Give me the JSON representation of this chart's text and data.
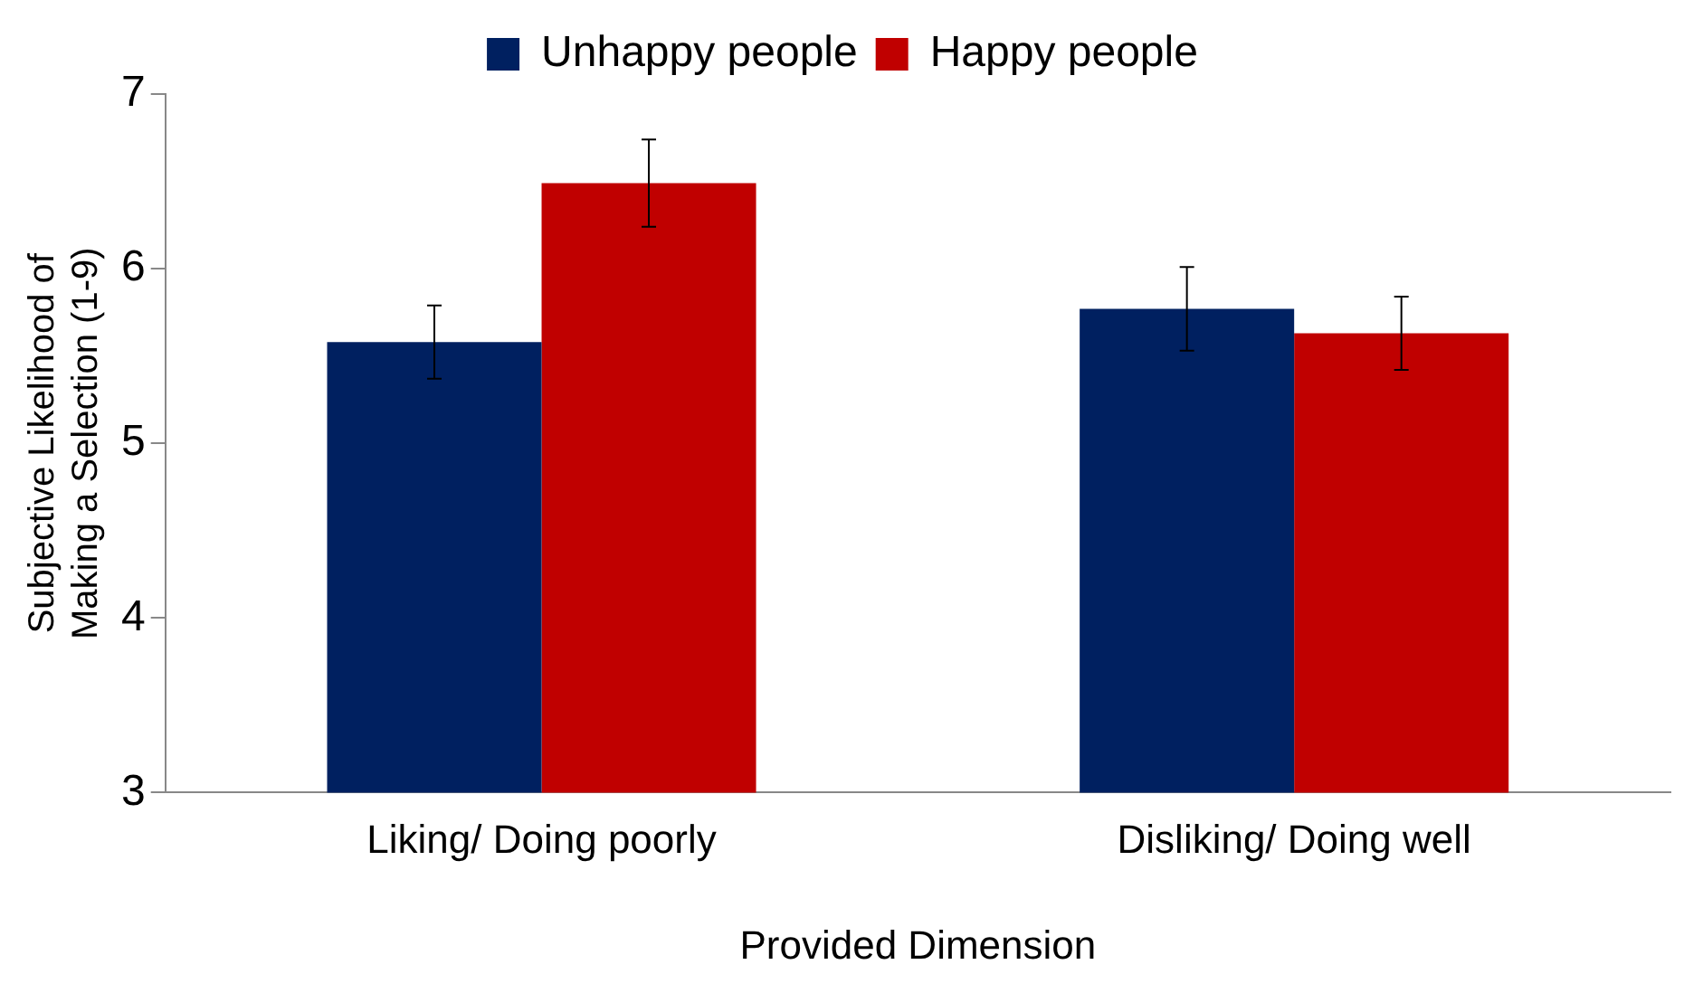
{
  "chart_data": {
    "type": "bar",
    "xlabel": "Provided Dimension",
    "ylabel": "Subjective Likelihood of Making a Selection (1-9)",
    "categories": [
      "Liking/ Doing poorly",
      "Disliking/ Doing well"
    ],
    "series": [
      {
        "name": "Unhappy people",
        "color": "#002060",
        "values": [
          5.58,
          5.77
        ],
        "errors": [
          0.21,
          0.24
        ]
      },
      {
        "name": "Happy people",
        "color": "#c00000",
        "values": [
          6.49,
          5.63
        ],
        "errors": [
          0.25,
          0.21
        ]
      }
    ],
    "ylim": [
      3,
      7
    ],
    "yticks": [
      3,
      4,
      5,
      6,
      7
    ],
    "grid": false,
    "legend": "top"
  }
}
